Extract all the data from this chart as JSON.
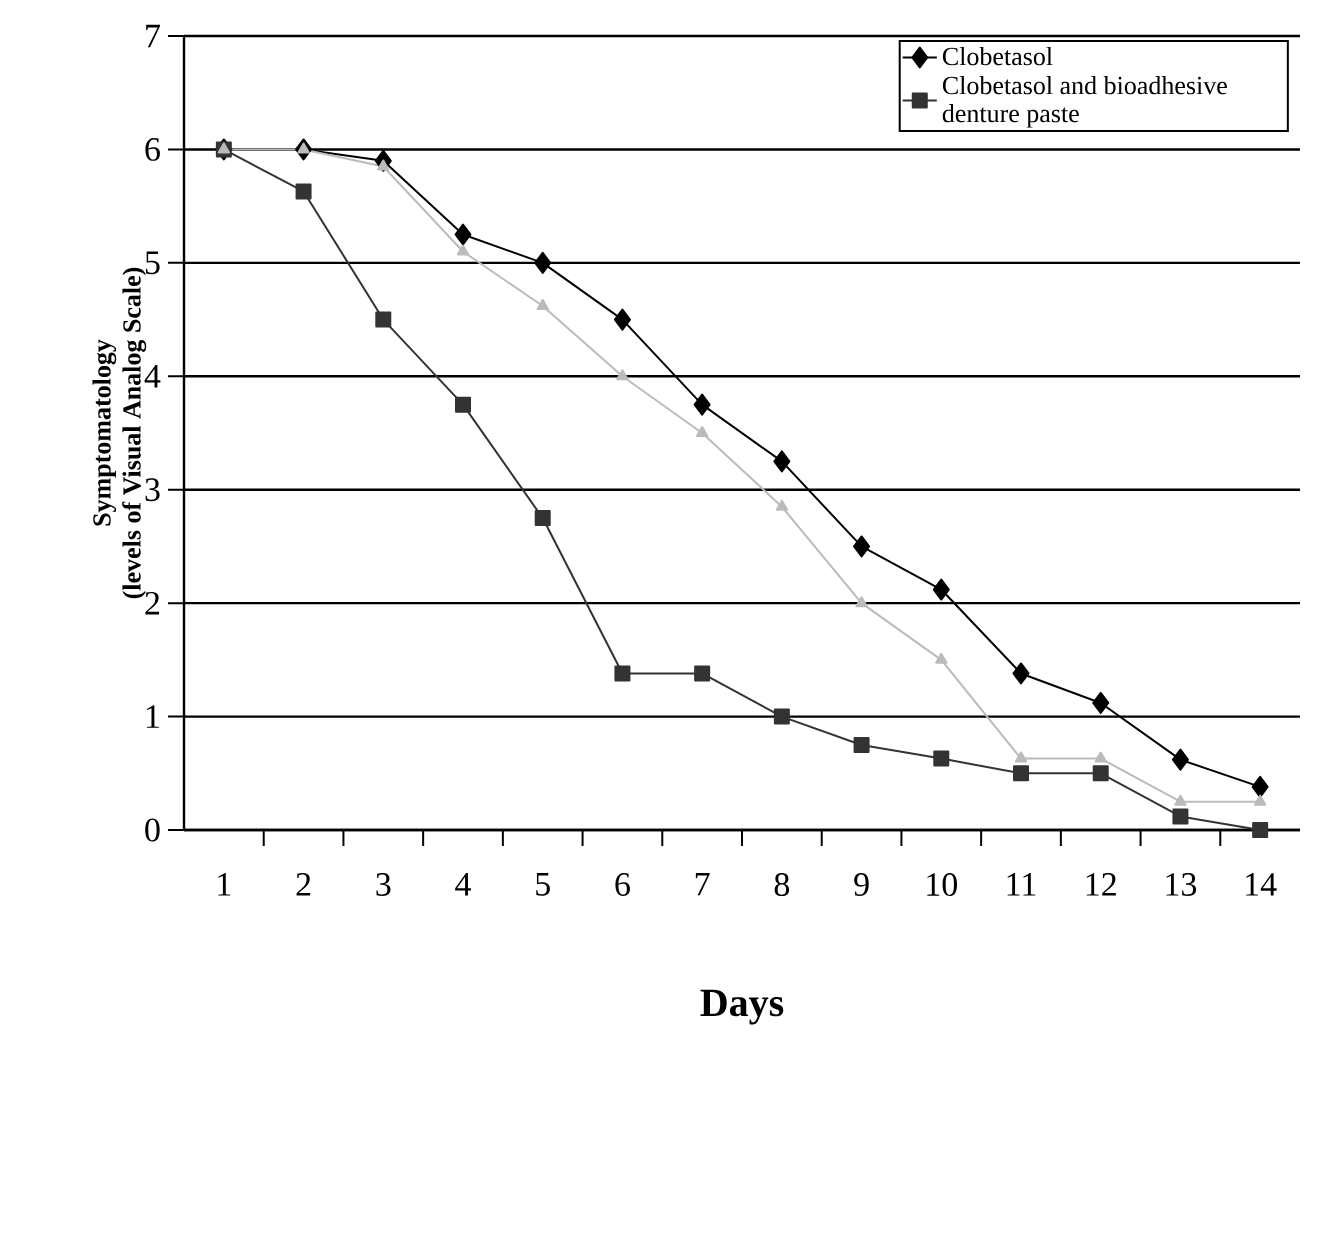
{
  "chart_data": {
    "type": "line",
    "xlabel": "Days",
    "ylabel": "Symptomatology\n(levels of Visual Analog Scale)",
    "categories": [
      "1",
      "2",
      "3",
      "4",
      "5",
      "6",
      "7",
      "8",
      "9",
      "10",
      "11",
      "12",
      "13",
      "14"
    ],
    "ylim": [
      0,
      7
    ],
    "yticks": [
      0,
      1,
      2,
      3,
      4,
      5,
      6,
      7
    ],
    "grid": "y",
    "legend": "top right",
    "series": [
      {
        "name": "Clobetasol",
        "color": "#000000",
        "marker": "diamond",
        "values": [
          6,
          6,
          5.9,
          5.25,
          5,
          4.5,
          3.75,
          3.25,
          2.5,
          2.12,
          1.38,
          1.12,
          0.62,
          0.38
        ]
      },
      {
        "name": "Clobetasol and bioadhesive denture paste",
        "color": "#333333",
        "marker": "square",
        "values": [
          6,
          5.63,
          4.5,
          3.75,
          2.75,
          1.38,
          1.38,
          1,
          0.75,
          0.63,
          0.5,
          0.5,
          0.12,
          0
        ]
      },
      {
        "color": "#bbbbbb",
        "marker": "triangle",
        "values": [
          6,
          6,
          5.85,
          5.1,
          4.62,
          4,
          3.5,
          2.85,
          2,
          1.5,
          0.63,
          0.63,
          0.25,
          0.25
        ]
      }
    ]
  }
}
